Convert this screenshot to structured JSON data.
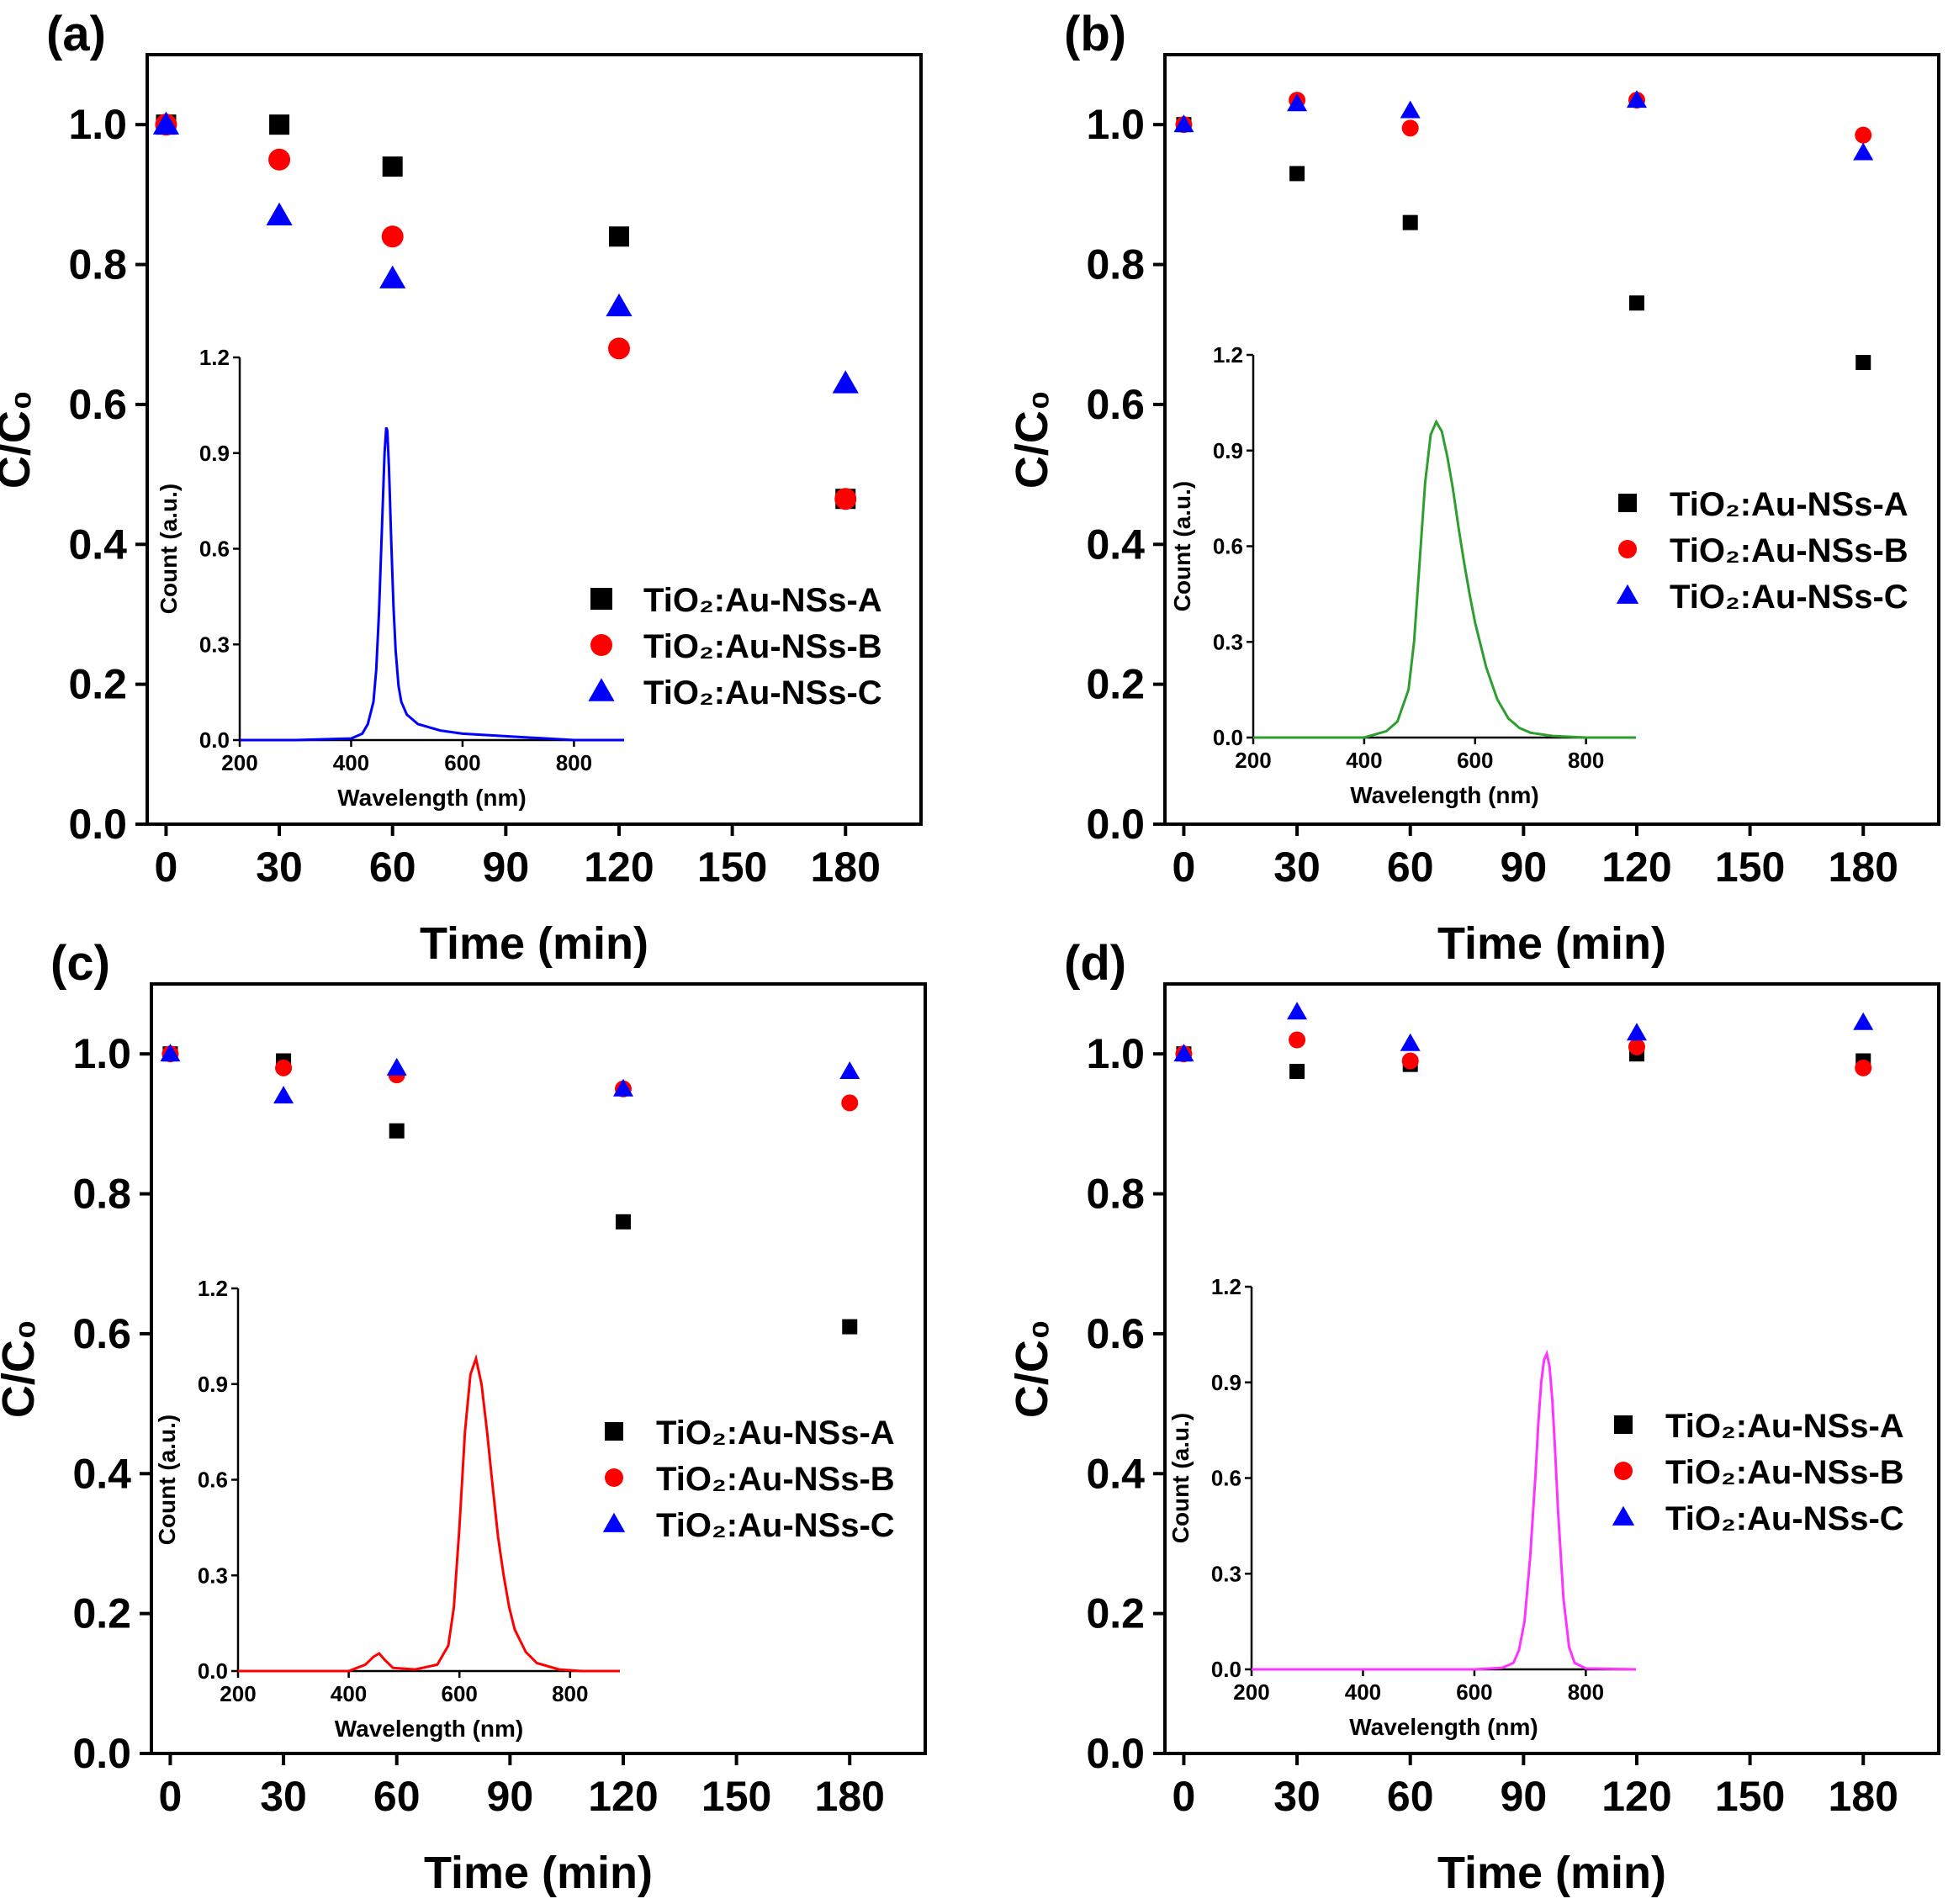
{
  "figure": {
    "series_names": [
      "TiO₂:Au-NSs-A",
      "TiO₂:Au-NSs-B",
      "TiO₂:Au-NSs-C"
    ],
    "series_colors": [
      "#000000",
      "#ff0000",
      "#0000ff"
    ],
    "series_markers": [
      "square",
      "circle",
      "triangle"
    ]
  },
  "chart_data": [
    {
      "panel_label": "(a)",
      "type": "scatter",
      "xlabel": "Time (min)",
      "ylabel": "C/C₀",
      "xlim": [
        -5,
        200
      ],
      "ylim": [
        0,
        1.1
      ],
      "xticks": [
        0,
        30,
        60,
        90,
        120,
        150,
        180
      ],
      "yticks": [
        0.0,
        0.2,
        0.4,
        0.6,
        0.8,
        1.0
      ],
      "legend_position": "middle-right",
      "series": [
        {
          "name": "TiO₂:Au-NSs-A",
          "x": [
            0,
            30,
            60,
            120,
            180
          ],
          "y": [
            1.0,
            1.0,
            0.94,
            0.84,
            0.465
          ]
        },
        {
          "name": "TiO₂:Au-NSs-B",
          "x": [
            0,
            30,
            60,
            120,
            180
          ],
          "y": [
            1.0,
            0.95,
            0.84,
            0.68,
            0.465
          ]
        },
        {
          "name": "TiO₂:Au-NSs-C",
          "x": [
            0,
            30,
            60,
            120,
            180
          ],
          "y": [
            1.0,
            0.87,
            0.78,
            0.74,
            0.63
          ]
        }
      ],
      "inset": {
        "type": "line",
        "xlabel": "Wavelength (nm)",
        "ylabel": "Count (a.u.)",
        "xlim": [
          200,
          890
        ],
        "ylim": [
          0,
          1.2
        ],
        "xticks": [
          200,
          400,
          600,
          800
        ],
        "yticks": [
          0.0,
          0.3,
          0.6,
          0.9,
          1.2
        ],
        "color": "#0000ff",
        "x": [
          200,
          300,
          400,
          420,
          430,
          440,
          445,
          450,
          455,
          460,
          463,
          465,
          468,
          472,
          476,
          480,
          485,
          490,
          500,
          520,
          560,
          600,
          700,
          800,
          890
        ],
        "y": [
          0.0,
          0.0,
          0.005,
          0.02,
          0.05,
          0.12,
          0.22,
          0.4,
          0.65,
          0.9,
          0.98,
          0.97,
          0.85,
          0.62,
          0.42,
          0.28,
          0.17,
          0.12,
          0.08,
          0.05,
          0.03,
          0.02,
          0.01,
          0.0,
          0.0
        ]
      }
    },
    {
      "panel_label": "(b)",
      "type": "scatter",
      "xlabel": "Time (min)",
      "ylabel": "C/C₀",
      "xlim": [
        -5,
        200
      ],
      "ylim": [
        0,
        1.1
      ],
      "xticks": [
        0,
        30,
        60,
        90,
        120,
        150,
        180
      ],
      "yticks": [
        0.0,
        0.2,
        0.4,
        0.6,
        0.8,
        1.0
      ],
      "legend_position": "middle-right",
      "series": [
        {
          "name": "TiO₂:Au-NSs-A",
          "x": [
            0,
            30,
            60,
            120,
            180
          ],
          "y": [
            1.0,
            0.93,
            0.86,
            0.745,
            0.66
          ]
        },
        {
          "name": "TiO₂:Au-NSs-B",
          "x": [
            0,
            30,
            60,
            120,
            180
          ],
          "y": [
            1.0,
            1.035,
            0.995,
            1.035,
            0.985
          ]
        },
        {
          "name": "TiO₂:Au-NSs-C",
          "x": [
            0,
            30,
            60,
            120,
            180
          ],
          "y": [
            1.0,
            1.03,
            1.02,
            1.035,
            0.96
          ]
        }
      ],
      "inset": {
        "type": "line",
        "xlabel": "Wavelength (nm)",
        "ylabel": "Count (a.u.)",
        "xlim": [
          200,
          890
        ],
        "ylim": [
          0,
          1.2
        ],
        "xticks": [
          200,
          400,
          600,
          800
        ],
        "yticks": [
          0.0,
          0.3,
          0.6,
          0.9,
          1.2
        ],
        "color": "#2e9e2e",
        "x": [
          200,
          400,
          440,
          460,
          480,
          490,
          500,
          510,
          520,
          530,
          540,
          550,
          560,
          570,
          580,
          590,
          600,
          620,
          640,
          660,
          680,
          700,
          740,
          800,
          890
        ],
        "y": [
          0.0,
          0.0,
          0.02,
          0.05,
          0.15,
          0.3,
          0.55,
          0.8,
          0.95,
          0.99,
          0.96,
          0.88,
          0.78,
          0.66,
          0.55,
          0.45,
          0.36,
          0.22,
          0.12,
          0.06,
          0.03,
          0.015,
          0.005,
          0.0,
          0.0
        ]
      }
    },
    {
      "panel_label": "(c)",
      "type": "scatter",
      "xlabel": "Time (min)",
      "ylabel": "C/C₀",
      "xlim": [
        -5,
        200
      ],
      "ylim": [
        0,
        1.1
      ],
      "xticks": [
        0,
        30,
        60,
        90,
        120,
        150,
        180
      ],
      "yticks": [
        0.0,
        0.2,
        0.4,
        0.6,
        0.8,
        1.0
      ],
      "legend_position": "middle-right",
      "series": [
        {
          "name": "TiO₂:Au-NSs-A",
          "x": [
            0,
            30,
            60,
            120,
            180
          ],
          "y": [
            1.0,
            0.99,
            0.89,
            0.76,
            0.61
          ]
        },
        {
          "name": "TiO₂:Au-NSs-B",
          "x": [
            0,
            30,
            60,
            120,
            180
          ],
          "y": [
            1.0,
            0.98,
            0.97,
            0.95,
            0.93
          ]
        },
        {
          "name": "TiO₂:Au-NSs-C",
          "x": [
            0,
            30,
            60,
            120,
            180
          ],
          "y": [
            1.0,
            0.94,
            0.98,
            0.95,
            0.975
          ]
        }
      ],
      "inset": {
        "type": "line",
        "xlabel": "Wavelength (nm)",
        "ylabel": "Count (a.u.)",
        "xlim": [
          200,
          890
        ],
        "ylim": [
          0,
          1.2
        ],
        "xticks": [
          200,
          400,
          600,
          800
        ],
        "yticks": [
          0.0,
          0.3,
          0.6,
          0.9,
          1.2
        ],
        "color": "#ff0000",
        "x": [
          200,
          400,
          430,
          445,
          455,
          465,
          480,
          520,
          560,
          580,
          590,
          600,
          610,
          620,
          630,
          640,
          650,
          660,
          670,
          680,
          690,
          700,
          720,
          740,
          780,
          820,
          890
        ],
        "y": [
          0.0,
          0.0,
          0.02,
          0.045,
          0.055,
          0.035,
          0.01,
          0.005,
          0.02,
          0.08,
          0.2,
          0.45,
          0.75,
          0.93,
          0.98,
          0.9,
          0.75,
          0.58,
          0.42,
          0.3,
          0.2,
          0.13,
          0.06,
          0.025,
          0.005,
          0.0,
          0.0
        ]
      }
    },
    {
      "panel_label": "(d)",
      "type": "scatter",
      "xlabel": "Time (min)",
      "ylabel": "C/C₀",
      "xlim": [
        -5,
        200
      ],
      "ylim": [
        0,
        1.1
      ],
      "xticks": [
        0,
        30,
        60,
        90,
        120,
        150,
        180
      ],
      "yticks": [
        0.0,
        0.2,
        0.4,
        0.6,
        0.8,
        1.0
      ],
      "legend_position": "middle-right",
      "series": [
        {
          "name": "TiO₂:Au-NSs-A",
          "x": [
            0,
            30,
            60,
            120,
            180
          ],
          "y": [
            1.0,
            0.975,
            0.985,
            1.0,
            0.99
          ]
        },
        {
          "name": "TiO₂:Au-NSs-B",
          "x": [
            0,
            30,
            60,
            120,
            180
          ],
          "y": [
            1.0,
            1.02,
            0.99,
            1.01,
            0.98
          ]
        },
        {
          "name": "TiO₂:Au-NSs-C",
          "x": [
            0,
            30,
            60,
            120,
            180
          ],
          "y": [
            1.0,
            1.06,
            1.015,
            1.03,
            1.045
          ]
        }
      ],
      "inset": {
        "type": "line",
        "xlabel": "Wavelength (nm)",
        "ylabel": "Count (a.u.)",
        "xlim": [
          200,
          890
        ],
        "ylim": [
          0,
          1.2
        ],
        "xticks": [
          200,
          400,
          600,
          800
        ],
        "yticks": [
          0.0,
          0.3,
          0.6,
          0.9,
          1.2
        ],
        "color": "#ff33ff",
        "x": [
          200,
          600,
          650,
          670,
          680,
          690,
          700,
          710,
          715,
          720,
          725,
          730,
          735,
          740,
          745,
          750,
          760,
          770,
          780,
          800,
          890
        ],
        "y": [
          0.0,
          0.0,
          0.005,
          0.02,
          0.06,
          0.15,
          0.35,
          0.62,
          0.78,
          0.9,
          0.97,
          0.99,
          0.95,
          0.84,
          0.68,
          0.5,
          0.22,
          0.07,
          0.02,
          0.003,
          0.0
        ]
      }
    }
  ]
}
